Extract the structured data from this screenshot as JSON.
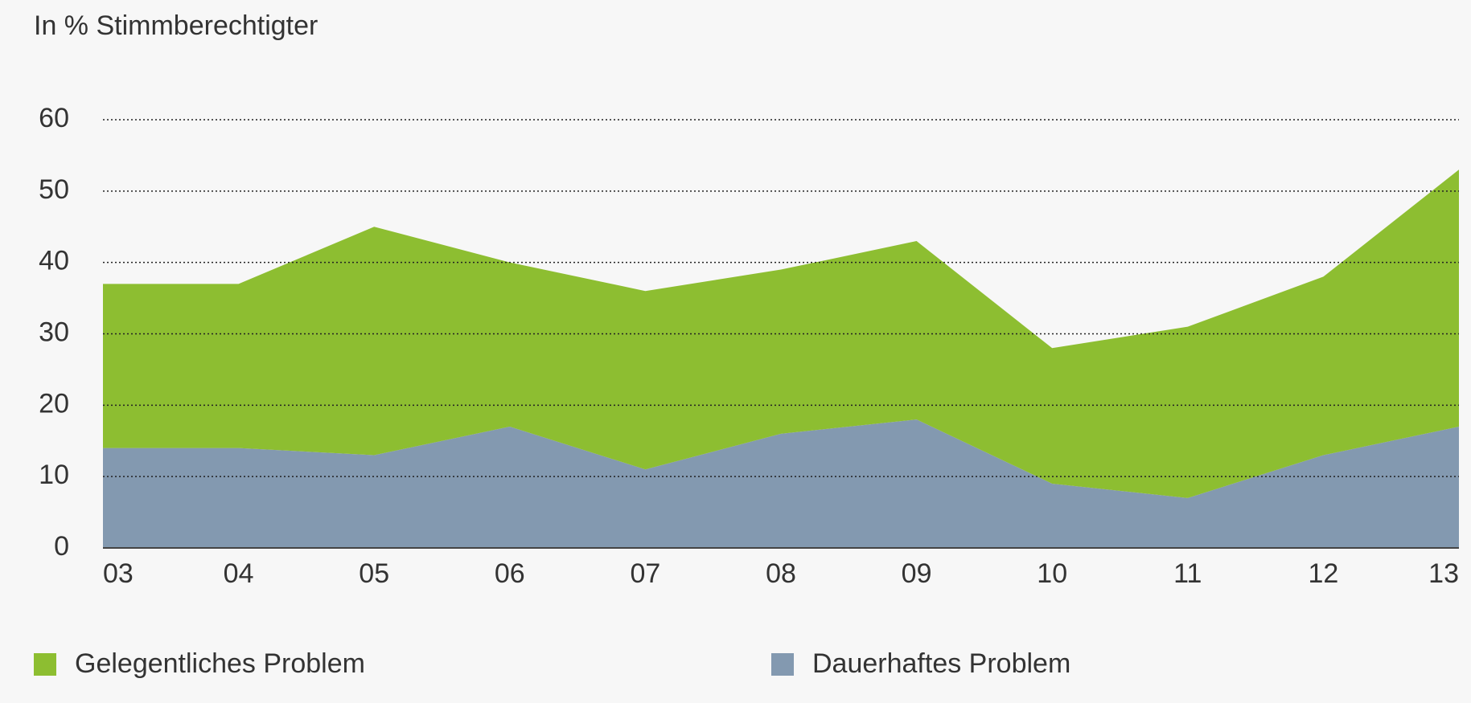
{
  "chart_data": {
    "type": "stacked_area",
    "title": "In % Stimmberechtigter",
    "categories": [
      "03",
      "04",
      "05",
      "06",
      "07",
      "08",
      "09",
      "10",
      "11",
      "12",
      "13"
    ],
    "series": [
      {
        "name": "Gelegentliches Problem",
        "color": "#8dbe31",
        "values": [
          23,
          23,
          32,
          23,
          25,
          23,
          25,
          19,
          24,
          25,
          36
        ]
      },
      {
        "name": "Dauerhaftes Problem",
        "color": "#8399b0",
        "values": [
          14,
          14,
          13,
          17,
          11,
          16,
          18,
          9,
          7,
          13,
          17
        ]
      }
    ],
    "ylim": [
      0,
      60
    ],
    "yticks": [
      0,
      10,
      20,
      30,
      40,
      50,
      60
    ],
    "grid": true,
    "legend": "bottom"
  }
}
